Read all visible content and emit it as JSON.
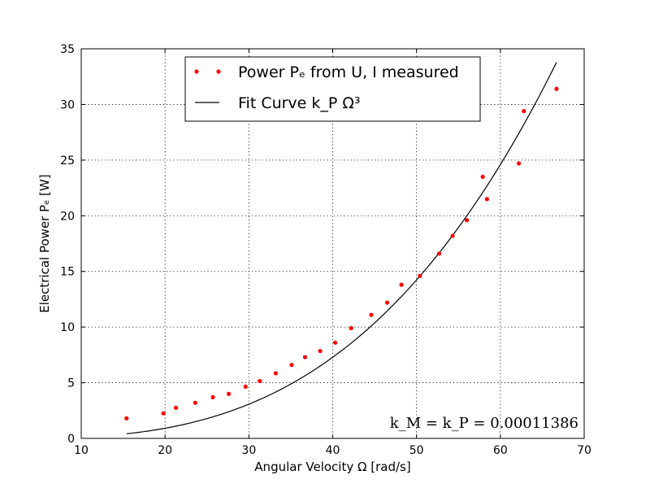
{
  "chart_data": {
    "type": "scatter",
    "xlabel": "Angular Velocity Ω [rad/s]",
    "ylabel": "Electrical Power Pₑ [W]",
    "xlim": [
      10,
      70
    ],
    "ylim": [
      0,
      35
    ],
    "xticks": [
      10,
      20,
      30,
      40,
      50,
      60,
      70
    ],
    "yticks": [
      0,
      5,
      10,
      15,
      20,
      25,
      30,
      35
    ],
    "grid": true,
    "legend_position": "top-center",
    "colors": {
      "measured": "#ff0000",
      "fit": "#000000"
    },
    "series": [
      {
        "name": "Power Pₑ from U, I measured",
        "kind": "points",
        "x": [
          15.4,
          19.8,
          21.3,
          23.6,
          25.7,
          27.6,
          29.6,
          31.3,
          33.2,
          35.1,
          36.7,
          38.5,
          40.3,
          42.2,
          44.6,
          46.5,
          48.2,
          50.4,
          52.7,
          54.3,
          56.0,
          57.9,
          58.4,
          62.2,
          62.8,
          66.7
        ],
        "y": [
          1.8,
          2.25,
          2.75,
          3.2,
          3.7,
          4.0,
          4.65,
          5.15,
          5.85,
          6.6,
          7.3,
          7.85,
          8.6,
          9.9,
          11.1,
          12.2,
          13.8,
          14.6,
          16.6,
          18.2,
          19.6,
          23.5,
          21.5,
          24.7,
          29.4,
          31.4
        ]
      },
      {
        "name": "Fit Curve k_P Ω³",
        "kind": "curve",
        "k": 0.00011386,
        "x_range": [
          15.4,
          66.7
        ]
      }
    ],
    "legend": {
      "measured_label": "Power Pₑ from U, I measured",
      "fit_label": "Fit Curve k_P Ω³"
    },
    "annotation": "k_M = k_P = 0.00011386"
  }
}
